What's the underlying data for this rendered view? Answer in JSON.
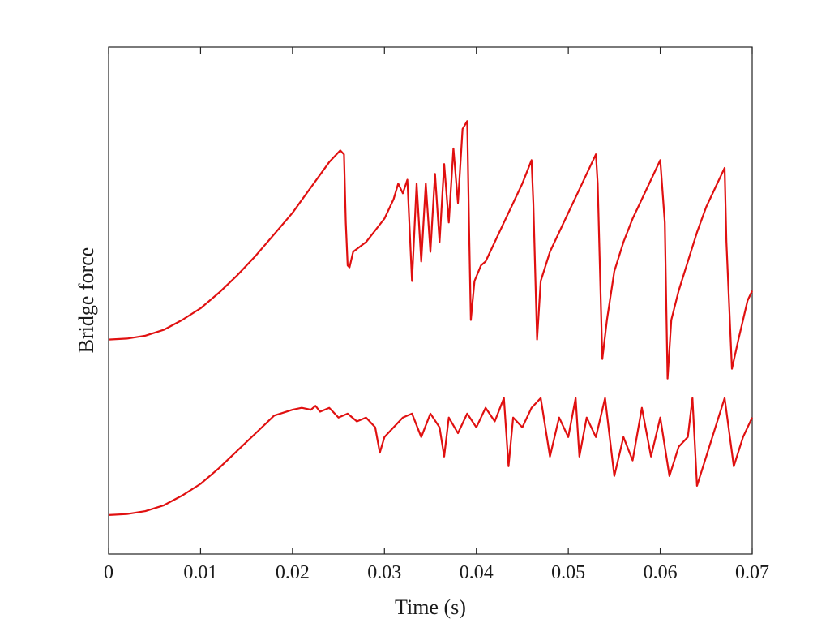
{
  "chart_data": {
    "type": "line",
    "title": "",
    "xlabel": "Time (s)",
    "ylabel": "Bridge force",
    "xlim": [
      0,
      0.07
    ],
    "ylim": [
      -1.1,
      1.5
    ],
    "x_ticks": [
      0,
      0.01,
      0.02,
      0.03,
      0.04,
      0.05,
      0.06,
      0.07
    ],
    "x_tick_labels": [
      "0",
      "0.01",
      "0.02",
      "0.03",
      "0.04",
      "0.05",
      "0.06",
      "0.07"
    ],
    "y_ticks": [],
    "grid": false,
    "legend": "none",
    "line_color": "#e01010",
    "series": [
      {
        "points": [
          [
            0.0,
            0.0
          ],
          [
            0.002,
            0.005
          ],
          [
            0.004,
            0.02
          ],
          [
            0.006,
            0.05
          ],
          [
            0.008,
            0.1
          ],
          [
            0.01,
            0.16
          ],
          [
            0.012,
            0.24
          ],
          [
            0.014,
            0.33
          ],
          [
            0.016,
            0.43
          ],
          [
            0.018,
            0.54
          ],
          [
            0.02,
            0.65
          ],
          [
            0.022,
            0.78
          ],
          [
            0.024,
            0.91
          ],
          [
            0.0252,
            0.97
          ],
          [
            0.0256,
            0.95
          ],
          [
            0.0258,
            0.6
          ],
          [
            0.026,
            0.38
          ],
          [
            0.0262,
            0.37
          ],
          [
            0.0266,
            0.45
          ],
          [
            0.028,
            0.5
          ],
          [
            0.03,
            0.62
          ],
          [
            0.031,
            0.72
          ],
          [
            0.0315,
            0.8
          ],
          [
            0.032,
            0.75
          ],
          [
            0.0325,
            0.82
          ],
          [
            0.033,
            0.3
          ],
          [
            0.0335,
            0.8
          ],
          [
            0.034,
            0.4
          ],
          [
            0.0345,
            0.8
          ],
          [
            0.035,
            0.45
          ],
          [
            0.0355,
            0.85
          ],
          [
            0.036,
            0.5
          ],
          [
            0.0365,
            0.9
          ],
          [
            0.037,
            0.6
          ],
          [
            0.0375,
            0.98
          ],
          [
            0.038,
            0.7
          ],
          [
            0.0385,
            1.08
          ],
          [
            0.039,
            1.12
          ],
          [
            0.0392,
            0.6
          ],
          [
            0.0394,
            0.1
          ],
          [
            0.0398,
            0.3
          ],
          [
            0.0405,
            0.38
          ],
          [
            0.041,
            0.4
          ],
          [
            0.042,
            0.5
          ],
          [
            0.043,
            0.6
          ],
          [
            0.044,
            0.7
          ],
          [
            0.045,
            0.8
          ],
          [
            0.046,
            0.92
          ],
          [
            0.0462,
            0.7
          ],
          [
            0.0466,
            0.0
          ],
          [
            0.047,
            0.3
          ],
          [
            0.048,
            0.45
          ],
          [
            0.049,
            0.55
          ],
          [
            0.05,
            0.65
          ],
          [
            0.051,
            0.75
          ],
          [
            0.052,
            0.85
          ],
          [
            0.053,
            0.95
          ],
          [
            0.0532,
            0.8
          ],
          [
            0.0537,
            -0.1
          ],
          [
            0.0542,
            0.1
          ],
          [
            0.055,
            0.35
          ],
          [
            0.056,
            0.5
          ],
          [
            0.057,
            0.62
          ],
          [
            0.058,
            0.72
          ],
          [
            0.059,
            0.82
          ],
          [
            0.06,
            0.92
          ],
          [
            0.0605,
            0.6
          ],
          [
            0.0608,
            -0.2
          ],
          [
            0.0612,
            0.1
          ],
          [
            0.062,
            0.25
          ],
          [
            0.063,
            0.4
          ],
          [
            0.064,
            0.55
          ],
          [
            0.065,
            0.68
          ],
          [
            0.066,
            0.78
          ],
          [
            0.067,
            0.88
          ],
          [
            0.0672,
            0.5
          ],
          [
            0.0678,
            -0.15
          ],
          [
            0.0685,
            0.0
          ],
          [
            0.069,
            0.1
          ],
          [
            0.0695,
            0.2
          ],
          [
            0.07,
            0.25
          ]
        ]
      },
      {
        "points": [
          [
            0.0,
            -0.9
          ],
          [
            0.002,
            -0.895
          ],
          [
            0.004,
            -0.88
          ],
          [
            0.006,
            -0.85
          ],
          [
            0.008,
            -0.8
          ],
          [
            0.01,
            -0.74
          ],
          [
            0.012,
            -0.66
          ],
          [
            0.014,
            -0.57
          ],
          [
            0.016,
            -0.48
          ],
          [
            0.018,
            -0.39
          ],
          [
            0.02,
            -0.36
          ],
          [
            0.021,
            -0.35
          ],
          [
            0.022,
            -0.36
          ],
          [
            0.0225,
            -0.34
          ],
          [
            0.023,
            -0.37
          ],
          [
            0.024,
            -0.35
          ],
          [
            0.025,
            -0.4
          ],
          [
            0.026,
            -0.38
          ],
          [
            0.027,
            -0.42
          ],
          [
            0.028,
            -0.4
          ],
          [
            0.029,
            -0.45
          ],
          [
            0.0295,
            -0.58
          ],
          [
            0.03,
            -0.5
          ],
          [
            0.031,
            -0.45
          ],
          [
            0.032,
            -0.4
          ],
          [
            0.033,
            -0.38
          ],
          [
            0.034,
            -0.5
          ],
          [
            0.035,
            -0.38
          ],
          [
            0.036,
            -0.45
          ],
          [
            0.0365,
            -0.6
          ],
          [
            0.037,
            -0.4
          ],
          [
            0.038,
            -0.48
          ],
          [
            0.039,
            -0.38
          ],
          [
            0.04,
            -0.45
          ],
          [
            0.041,
            -0.35
          ],
          [
            0.042,
            -0.42
          ],
          [
            0.043,
            -0.3
          ],
          [
            0.0435,
            -0.65
          ],
          [
            0.044,
            -0.4
          ],
          [
            0.045,
            -0.45
          ],
          [
            0.046,
            -0.35
          ],
          [
            0.047,
            -0.3
          ],
          [
            0.048,
            -0.6
          ],
          [
            0.049,
            -0.4
          ],
          [
            0.05,
            -0.5
          ],
          [
            0.0508,
            -0.3
          ],
          [
            0.0512,
            -0.6
          ],
          [
            0.052,
            -0.4
          ],
          [
            0.053,
            -0.5
          ],
          [
            0.054,
            -0.3
          ],
          [
            0.055,
            -0.7
          ],
          [
            0.056,
            -0.5
          ],
          [
            0.057,
            -0.62
          ],
          [
            0.058,
            -0.35
          ],
          [
            0.059,
            -0.6
          ],
          [
            0.06,
            -0.4
          ],
          [
            0.061,
            -0.7
          ],
          [
            0.062,
            -0.55
          ],
          [
            0.063,
            -0.5
          ],
          [
            0.0635,
            -0.3
          ],
          [
            0.064,
            -0.75
          ],
          [
            0.065,
            -0.6
          ],
          [
            0.066,
            -0.45
          ],
          [
            0.067,
            -0.3
          ],
          [
            0.068,
            -0.65
          ],
          [
            0.069,
            -0.5
          ],
          [
            0.07,
            -0.4
          ]
        ]
      }
    ]
  }
}
